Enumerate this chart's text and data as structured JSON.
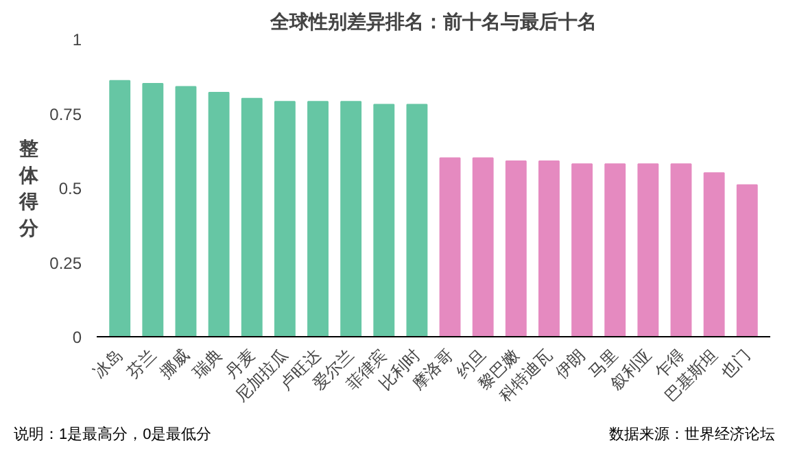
{
  "chart_data": {
    "type": "bar",
    "title": "全球性别差异排名：前十名与最后十名",
    "ylabel": "整体得分",
    "categories": [
      "冰岛",
      "芬兰",
      "挪威",
      "瑞典",
      "丹麦",
      "尼加拉瓜",
      "卢旺达",
      "爱尔兰",
      "菲律宾",
      "比利时",
      "摩洛哥",
      "约旦",
      "黎巴嫩",
      "科特迪瓦",
      "伊朗",
      "马里",
      "叙利亚",
      "乍得",
      "巴基斯坦",
      "也门"
    ],
    "values": [
      0.86,
      0.85,
      0.84,
      0.82,
      0.8,
      0.79,
      0.79,
      0.79,
      0.78,
      0.78,
      0.6,
      0.6,
      0.59,
      0.59,
      0.58,
      0.58,
      0.58,
      0.58,
      0.55,
      0.51
    ],
    "colors": [
      "#66c6a4",
      "#66c6a4",
      "#66c6a4",
      "#66c6a4",
      "#66c6a4",
      "#66c6a4",
      "#66c6a4",
      "#66c6a4",
      "#66c6a4",
      "#66c6a4",
      "#e58ac0",
      "#e58ac0",
      "#e58ac0",
      "#e58ac0",
      "#e58ac0",
      "#e58ac0",
      "#e58ac0",
      "#e58ac0",
      "#e58ac0",
      "#e58ac0"
    ],
    "ylim": [
      0,
      1
    ],
    "yticks": [
      0,
      0.25,
      0.5,
      0.75,
      1
    ],
    "grid": false,
    "annotations": [
      "说明：1是最高分，0是最低分",
      "数据来源：世界经济论坛"
    ]
  }
}
